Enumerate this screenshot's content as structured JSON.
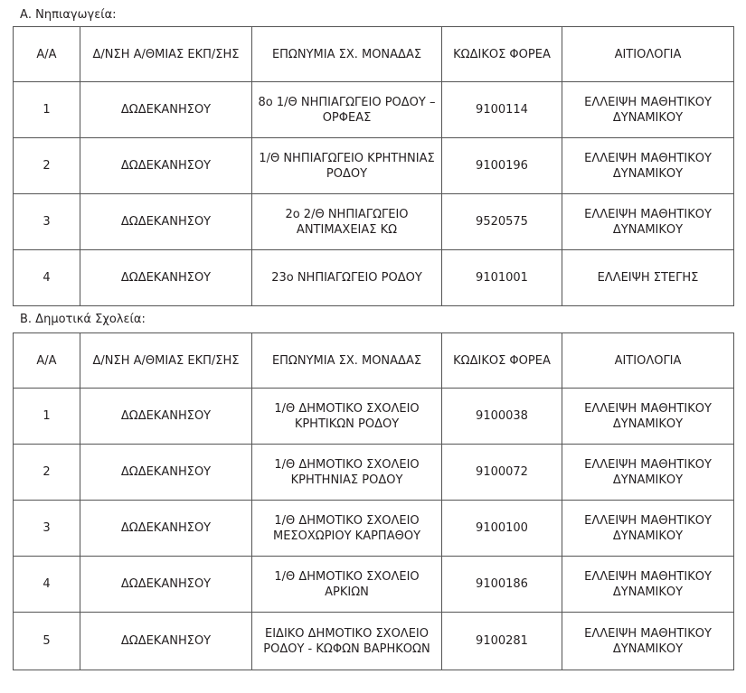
{
  "headers": [
    "Α/Α",
    "Δ/ΝΣΗ Α/ΘΜΙΑΣ ΕΚΠ/ΣΗΣ",
    "ΕΠΩΝΥΜΙΑ ΣΧ. ΜΟΝΑΔΑΣ",
    "ΚΩΔΙΚΟΣ ΦΟΡΕΑ",
    "ΑΙΤΙΟΛΟΓΙΑ"
  ],
  "sections": [
    {
      "title": "Α. Νηπιαγωγεία:",
      "rows": [
        [
          "1",
          "ΔΩΔΕΚΑΝΗΣΟΥ",
          "8ο 1/Θ ΝΗΠΙΑΓΩΓΕΙΟ ΡΟΔΟΥ – ΟΡΦΕΑΣ",
          "9100114",
          "ΕΛΛΕΙΨΗ ΜΑΘΗΤΙΚΟΥ ΔΥΝΑΜΙΚΟΥ"
        ],
        [
          "2",
          "ΔΩΔΕΚΑΝΗΣΟΥ",
          "1/Θ ΝΗΠΙΑΓΩΓΕΙΟ ΚΡΗΤΗΝΙΑΣ ΡΟΔΟΥ",
          "9100196",
          "ΕΛΛΕΙΨΗ ΜΑΘΗΤΙΚΟΥ ΔΥΝΑΜΙΚΟΥ"
        ],
        [
          "3",
          "ΔΩΔΕΚΑΝΗΣΟΥ",
          "2ο 2/Θ ΝΗΠΙΑΓΩΓΕΙΟ ΑΝΤΙΜΑΧΕΙΑΣ ΚΩ",
          "9520575",
          "ΕΛΛΕΙΨΗ ΜΑΘΗΤΙΚΟΥ ΔΥΝΑΜΙΚΟΥ"
        ],
        [
          "4",
          "ΔΩΔΕΚΑΝΗΣΟΥ",
          "23ο ΝΗΠΙΑΓΩΓΕΙΟ ΡΟΔΟΥ",
          "9101001",
          "ΕΛΛΕΙΨΗ ΣΤΕΓΗΣ"
        ]
      ]
    },
    {
      "title": "Β. Δημοτικά Σχολεία:",
      "rows": [
        [
          "1",
          "ΔΩΔΕΚΑΝΗΣΟΥ",
          "1/Θ ΔΗΜΟΤΙΚΟ ΣΧΟΛΕΙΟ ΚΡΗΤΙΚΩΝ ΡΟΔΟΥ",
          "9100038",
          "ΕΛΛΕΙΨΗ ΜΑΘΗΤΙΚΟΥ ΔΥΝΑΜΙΚΟΥ"
        ],
        [
          "2",
          "ΔΩΔΕΚΑΝΗΣΟΥ",
          "1/Θ ΔΗΜΟΤΙΚΟ ΣΧΟΛΕΙΟ ΚΡΗΤΗΝΙΑΣ ΡΟΔΟΥ",
          "9100072",
          "ΕΛΛΕΙΨΗ ΜΑΘΗΤΙΚΟΥ ΔΥΝΑΜΙΚΟΥ"
        ],
        [
          "3",
          "ΔΩΔΕΚΑΝΗΣΟΥ",
          "1/Θ ΔΗΜΟΤΙΚΟ ΣΧΟΛΕΙΟ ΜΕΣΟΧΩΡΙΟΥ ΚΑΡΠΑΘΟΥ",
          "9100100",
          "ΕΛΛΕΙΨΗ ΜΑΘΗΤΙΚΟΥ ΔΥΝΑΜΙΚΟΥ"
        ],
        [
          "4",
          "ΔΩΔΕΚΑΝΗΣΟΥ",
          "1/Θ ΔΗΜΟΤΙΚΟ ΣΧΟΛΕΙΟ ΑΡΚΙΩΝ",
          "9100186",
          "ΕΛΛΕΙΨΗ ΜΑΘΗΤΙΚΟΥ ΔΥΝΑΜΙΚΟΥ"
        ],
        [
          "5",
          "ΔΩΔΕΚΑΝΗΣΟΥ",
          "ΕΙΔΙΚΟ ΔΗΜΟΤΙΚΟ ΣΧΟΛΕΙΟ ΡΟΔΟΥ - ΚΩΦΩΝ ΒΑΡΗΚΟΩΝ",
          "9100281",
          "ΕΛΛΕΙΨΗ ΜΑΘΗΤΙΚΟΥ ΔΥΝΑΜΙΚΟΥ"
        ]
      ]
    }
  ]
}
